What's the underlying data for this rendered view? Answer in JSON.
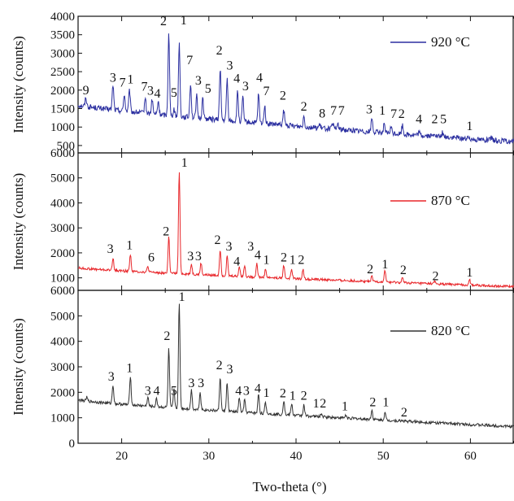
{
  "chart_data": {
    "type": "line",
    "xlabel": "Two-theta (°)",
    "xlim": [
      15,
      65
    ],
    "x_ticks": [
      "20",
      "30",
      "40",
      "50",
      "60"
    ],
    "panels": [
      {
        "ylabel": "Intensity (counts)",
        "ylim": [
          300,
          4000
        ],
        "y_ticks": [
          "500",
          "1000",
          "1500",
          "2000",
          "2500",
          "3000",
          "3500",
          "4000"
        ],
        "series": {
          "name": "920 °C",
          "color": "#2b2fa0",
          "baseline_start": 1600,
          "baseline_end": 600,
          "noise": 90,
          "peaks": [
            [
              15.9,
              1800
            ],
            [
              19.0,
              2150
            ],
            [
              20.3,
              1900
            ],
            [
              20.9,
              2000
            ],
            [
              22.7,
              1800
            ],
            [
              23.5,
              1750
            ],
            [
              24.2,
              1700
            ],
            [
              25.4,
              3580
            ],
            [
              26.0,
              1500
            ],
            [
              26.6,
              3300
            ],
            [
              27.9,
              2200
            ],
            [
              28.6,
              1850
            ],
            [
              29.3,
              1800
            ],
            [
              31.3,
              2600
            ],
            [
              32.1,
              2300
            ],
            [
              33.3,
              1950
            ],
            [
              33.9,
              1800
            ],
            [
              35.7,
              1900
            ],
            [
              36.4,
              1600
            ],
            [
              38.6,
              1450
            ],
            [
              40.9,
              1300
            ],
            [
              42.7,
              1050
            ],
            [
              44.2,
              1100
            ],
            [
              44.8,
              1100
            ],
            [
              48.7,
              1250
            ],
            [
              50.1,
              1050
            ],
            [
              50.9,
              1000
            ],
            [
              52.2,
              1050
            ],
            [
              54.1,
              850
            ],
            [
              55.9,
              850
            ],
            [
              56.8,
              850
            ],
            [
              59.9,
              700
            ],
            [
              62.4,
              700
            ]
          ]
        },
        "peak_labels": [
          [
            "9",
            15.9,
            1890
          ],
          [
            "3",
            19.0,
            2230
          ],
          [
            "7",
            20.1,
            2100
          ],
          [
            "1",
            21.0,
            2180
          ],
          [
            "7",
            22.6,
            1980
          ],
          [
            "3",
            23.3,
            1870
          ],
          [
            "4",
            24.1,
            1800
          ],
          [
            "2",
            24.8,
            3760
          ],
          [
            "5",
            26.0,
            1820
          ],
          [
            "1",
            27.1,
            3780
          ],
          [
            "7",
            27.8,
            2700
          ],
          [
            "3",
            28.8,
            2150
          ],
          [
            "5",
            29.9,
            1930
          ],
          [
            "2",
            31.2,
            2960
          ],
          [
            "3",
            32.4,
            2560
          ],
          [
            "4",
            33.2,
            2200
          ],
          [
            "3",
            34.2,
            2000
          ],
          [
            "4",
            35.8,
            2230
          ],
          [
            "7",
            36.6,
            1860
          ],
          [
            "2",
            38.5,
            1740
          ],
          [
            "2",
            40.9,
            1450
          ],
          [
            "8",
            43.0,
            1260
          ],
          [
            "7",
            44.3,
            1330
          ],
          [
            "7",
            45.2,
            1330
          ],
          [
            "3",
            48.4,
            1370
          ],
          [
            "1",
            49.9,
            1330
          ],
          [
            "7",
            51.2,
            1250
          ],
          [
            "2",
            52.1,
            1250
          ],
          [
            "4",
            54.1,
            1100
          ],
          [
            "2",
            55.9,
            1100
          ],
          [
            "5",
            56.9,
            1100
          ],
          [
            "1",
            59.9,
            920
          ]
        ]
      },
      {
        "ylabel": "Intensity (counts)",
        "ylim": [
          500,
          6000
        ],
        "y_ticks": [
          "1000",
          "2000",
          "3000",
          "4000",
          "5000",
          "6000"
        ],
        "series": {
          "name": "870 °C",
          "color": "#e8262a",
          "baseline_start": 1400,
          "baseline_end": 650,
          "noise": 60,
          "peaks": [
            [
              19.0,
              1800
            ],
            [
              21.0,
              1950
            ],
            [
              23.0,
              1450
            ],
            [
              25.4,
              2650
            ],
            [
              26.6,
              5250
            ],
            [
              28.0,
              1550
            ],
            [
              29.1,
              1600
            ],
            [
              31.3,
              2150
            ],
            [
              32.1,
              1900
            ],
            [
              33.5,
              1450
            ],
            [
              34.1,
              1500
            ],
            [
              35.5,
              1600
            ],
            [
              36.5,
              1350
            ],
            [
              38.6,
              1500
            ],
            [
              39.5,
              1350
            ],
            [
              40.8,
              1350
            ],
            [
              48.7,
              1050
            ],
            [
              50.2,
              1300
            ],
            [
              52.2,
              1000
            ],
            [
              55.9,
              850
            ],
            [
              59.9,
              950
            ]
          ]
        },
        "peak_labels": [
          [
            "3",
            18.7,
            2000
          ],
          [
            "1",
            20.9,
            2150
          ],
          [
            "6",
            23.4,
            1650
          ],
          [
            "2",
            25.1,
            2700
          ],
          [
            "1",
            27.2,
            5450
          ],
          [
            "3",
            27.9,
            1700
          ],
          [
            "3",
            28.8,
            1700
          ],
          [
            "2",
            31.0,
            2350
          ],
          [
            "3",
            32.3,
            2100
          ],
          [
            "4",
            33.2,
            1500
          ],
          [
            "3",
            34.8,
            2100
          ],
          [
            "4",
            35.6,
            1750
          ],
          [
            "1",
            36.6,
            1550
          ],
          [
            "2",
            38.6,
            1650
          ],
          [
            "1",
            39.6,
            1550
          ],
          [
            "2",
            40.6,
            1550
          ],
          [
            "2",
            48.5,
            1180
          ],
          [
            "1",
            50.2,
            1380
          ],
          [
            "2",
            52.3,
            1150
          ],
          [
            "2",
            56.0,
            900
          ],
          [
            "1",
            59.9,
            1050
          ]
        ]
      },
      {
        "ylabel": "Intensity (counts)",
        "ylim": [
          0,
          6000
        ],
        "y_ticks": [
          "0",
          "1000",
          "2000",
          "3000",
          "4000",
          "5000",
          "6000"
        ],
        "series": {
          "name": "820 °C",
          "color": "#333333",
          "baseline_start": 1700,
          "baseline_end": 650,
          "noise": 70,
          "peaks": [
            [
              16.0,
              1800
            ],
            [
              19.0,
              2300
            ],
            [
              21.0,
              2650
            ],
            [
              23.0,
              1800
            ],
            [
              24.0,
              1750
            ],
            [
              25.4,
              3700
            ],
            [
              26.0,
              2100
            ],
            [
              26.6,
              5500
            ],
            [
              28.0,
              2100
            ],
            [
              29.0,
              2000
            ],
            [
              31.3,
              2600
            ],
            [
              32.1,
              2400
            ],
            [
              33.5,
              1800
            ],
            [
              34.1,
              1700
            ],
            [
              35.7,
              1950
            ],
            [
              36.5,
              1600
            ],
            [
              38.6,
              1700
            ],
            [
              39.5,
              1550
            ],
            [
              40.9,
              1500
            ],
            [
              42.9,
              1150
            ],
            [
              45.7,
              1100
            ],
            [
              48.7,
              1300
            ],
            [
              50.2,
              1200
            ],
            [
              52.2,
              900
            ]
          ]
        },
        "peak_labels": [
          [
            "3",
            18.8,
            2450
          ],
          [
            "1",
            20.9,
            2800
          ],
          [
            "3",
            23.0,
            1900
          ],
          [
            "4",
            24.0,
            1900
          ],
          [
            "2",
            25.2,
            4050
          ],
          [
            "5",
            26.0,
            1900
          ],
          [
            "1",
            26.9,
            5580
          ],
          [
            "3",
            28.0,
            2200
          ],
          [
            "3",
            29.1,
            2200
          ],
          [
            "2",
            31.2,
            2900
          ],
          [
            "3",
            32.4,
            2750
          ],
          [
            "4",
            33.4,
            1900
          ],
          [
            "3",
            34.3,
            1900
          ],
          [
            "4",
            35.6,
            2000
          ],
          [
            "1",
            36.6,
            1820
          ],
          [
            "2",
            38.5,
            1800
          ],
          [
            "1",
            39.6,
            1700
          ],
          [
            "2",
            40.9,
            1700
          ],
          [
            "1",
            42.3,
            1400
          ],
          [
            "2",
            43.1,
            1400
          ],
          [
            "1",
            45.6,
            1300
          ],
          [
            "2",
            48.8,
            1450
          ],
          [
            "1",
            50.3,
            1450
          ],
          [
            "2",
            52.4,
            1050
          ]
        ]
      }
    ]
  }
}
